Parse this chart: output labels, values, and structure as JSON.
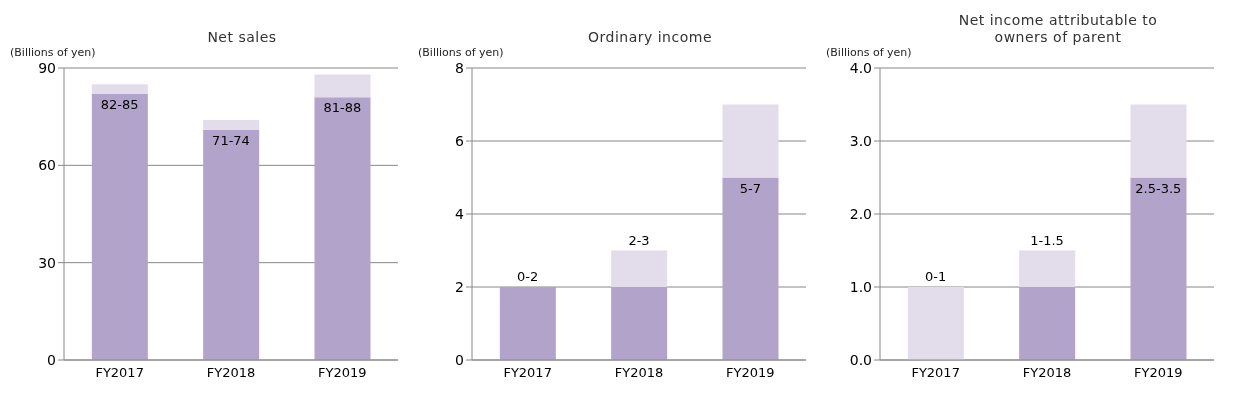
{
  "chart_data": [
    {
      "type": "bar",
      "title": "Net sales",
      "ylabel": "(Billions of yen)",
      "categories": [
        "FY2017",
        "FY2018",
        "FY2019"
      ],
      "stacked": true,
      "ylim": [
        0,
        90
      ],
      "yticks": [
        0,
        30,
        60,
        90
      ],
      "grid": "y",
      "series": [
        {
          "color": "#b1a3c9",
          "values": [
            82,
            71,
            81
          ]
        },
        {
          "color": "#e3dcea",
          "values": [
            3,
            3,
            7
          ],
          "value_labels": [
            "82-85",
            "71-74",
            "81-88"
          ]
        }
      ]
    },
    {
      "type": "bar",
      "title": "Ordinary income",
      "ylabel": "(Billions of yen)",
      "categories": [
        "FY2017",
        "FY2018",
        "FY2019"
      ],
      "stacked": true,
      "ylim": [
        0,
        8
      ],
      "yticks": [
        0,
        2,
        4,
        6,
        8
      ],
      "grid": "y",
      "series": [
        {
          "color": "#b1a3c9",
          "values": [
            2,
            2,
            5
          ]
        },
        {
          "color": "#e3dcea",
          "values": [
            0,
            1,
            2
          ],
          "value_labels": [
            "0-2",
            "2-3",
            "5-7"
          ]
        }
      ]
    },
    {
      "type": "bar",
      "title": "Net income attributable to owners of parent",
      "ylabel": "(Billions of yen)",
      "categories": [
        "FY2017",
        "FY2018",
        "FY2019"
      ],
      "stacked": true,
      "ylim": [
        0,
        4
      ],
      "yticks": [
        {
          "value": 0,
          "label": "0.0"
        },
        {
          "value": 1,
          "label": "1.0"
        },
        {
          "value": 2,
          "label": "2.0"
        },
        {
          "value": 3,
          "label": "3.0"
        },
        {
          "value": 4,
          "label": "4.0"
        }
      ],
      "grid": "y",
      "series": [
        {
          "color": "#b1a3c9",
          "values": [
            0,
            1,
            2.5
          ]
        },
        {
          "color": "#e3dcea",
          "values": [
            1,
            0.5,
            1
          ],
          "value_labels": [
            "0-1",
            "1-1.5",
            "2.5-3.5"
          ]
        }
      ]
    }
  ]
}
